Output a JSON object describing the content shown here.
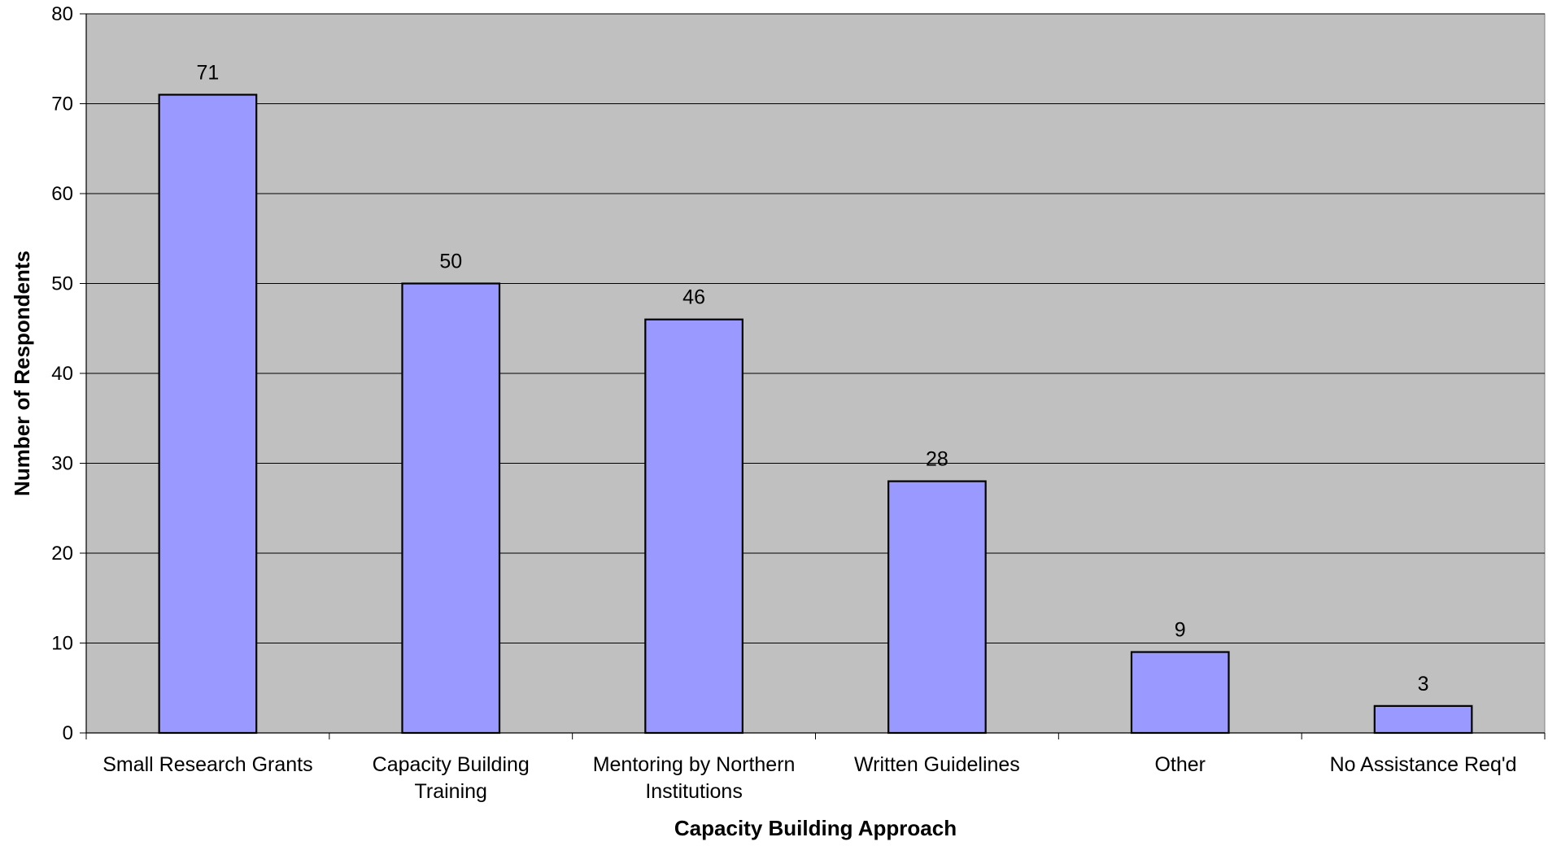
{
  "colors": {
    "plot_background": "#c0c0c0",
    "bar_fill": "#9999ff",
    "bar_stroke": "#000000",
    "gridline": "#000000"
  },
  "chart_data": {
    "type": "bar",
    "title": "",
    "xlabel": "Capacity Building Approach",
    "ylabel": "Number of Respondents",
    "ylim": [
      0,
      80
    ],
    "yticks": [
      0,
      10,
      20,
      30,
      40,
      50,
      60,
      70,
      80
    ],
    "grid": true,
    "legend": "none",
    "categories": [
      [
        "Small Research Grants"
      ],
      [
        "Capacity Building",
        "Training"
      ],
      [
        "Mentoring by Northern",
        "Institutions"
      ],
      [
        "Written Guidelines"
      ],
      [
        "Other"
      ],
      [
        "No Assistance Req'd"
      ]
    ],
    "values": [
      71,
      50,
      46,
      28,
      9,
      3
    ],
    "data_labels": [
      "71",
      "50",
      "46",
      "28",
      "9",
      "3"
    ]
  }
}
